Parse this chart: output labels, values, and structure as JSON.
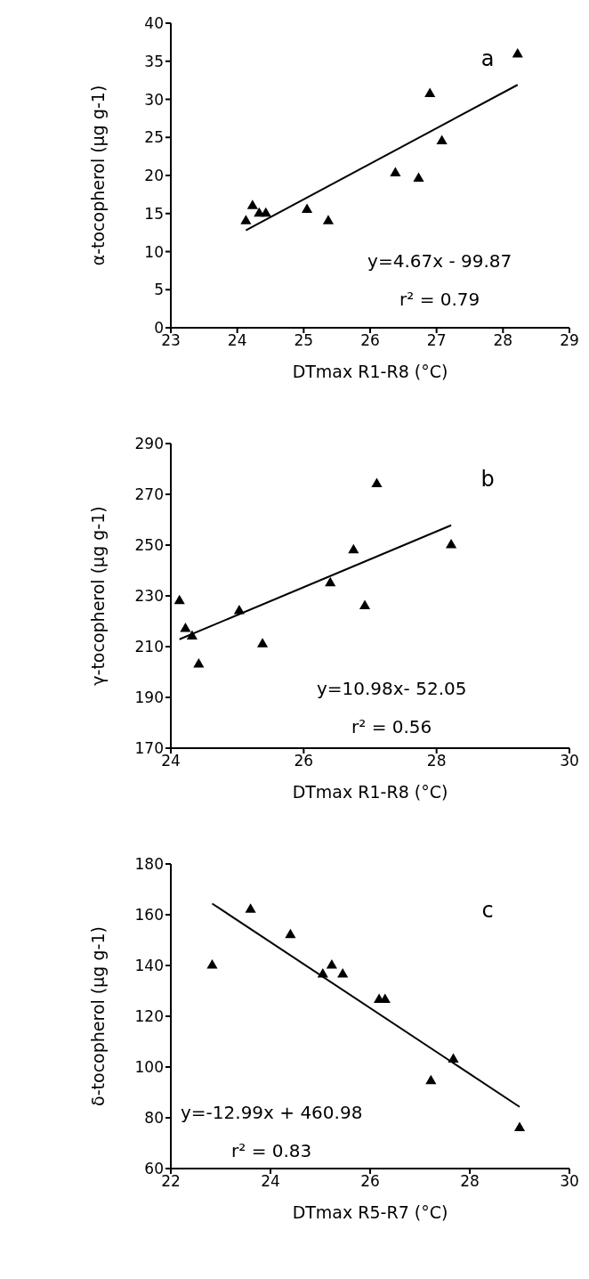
{
  "chart_data": [
    {
      "type": "scatter",
      "xlabel": "DTmax R1-R8 (°C)",
      "ylabel": "α-tocopherol (μg g-1)",
      "xlim": [
        23,
        29
      ],
      "xticks": [
        23,
        24,
        25,
        26,
        27,
        28,
        29
      ],
      "ylim": [
        0,
        40
      ],
      "yticks": [
        0,
        5,
        10,
        15,
        20,
        25,
        30,
        35,
        40
      ],
      "grid": false,
      "annotations": [
        "a",
        "y=4.67x - 99.87",
        "r² = 0.79"
      ],
      "series": [
        {
          "color": "#000000",
          "marker": "triangle",
          "x": [
            24.13,
            24.23,
            24.33,
            24.43,
            25.05,
            25.37,
            26.38,
            26.73,
            26.9,
            27.08,
            28.22
          ],
          "values": [
            14,
            16,
            15,
            15,
            15.5,
            14,
            20.3,
            19.6,
            30.7,
            24.5,
            35.9
          ]
        },
        {
          "type": "line",
          "color": "#000000",
          "marker": "none",
          "x": [
            24.13,
            28.22
          ],
          "values": [
            12.8,
            31.9
          ]
        }
      ]
    },
    {
      "type": "scatter",
      "xlabel": "DTmax R1-R8 (°C)",
      "ylabel": "γ-tocopherol (μg g-1)",
      "xlim": [
        24,
        30
      ],
      "xticks": [
        24,
        26,
        28,
        30
      ],
      "ylim": [
        170,
        290
      ],
      "yticks": [
        170,
        190,
        210,
        230,
        250,
        270,
        290
      ],
      "grid": false,
      "annotations": [
        "b",
        "y=10.98x- 52.05",
        "r² = 0.56"
      ],
      "series": [
        {
          "color": "#000000",
          "marker": "triangle",
          "x": [
            24.13,
            24.22,
            24.32,
            24.42,
            25.03,
            25.38,
            26.4,
            26.75,
            26.92,
            27.1,
            28.22
          ],
          "values": [
            228,
            217,
            214,
            203,
            224,
            211,
            235,
            248,
            226,
            274,
            250
          ]
        },
        {
          "type": "line",
          "color": "#000000",
          "marker": "none",
          "x": [
            24.13,
            28.22
          ],
          "values": [
            212.9,
            257.8
          ]
        }
      ]
    },
    {
      "type": "scatter",
      "xlabel": "DTmax R5-R7 (°C)",
      "ylabel": "δ-tocopherol (μg g-1)",
      "xlim": [
        22,
        30
      ],
      "xticks": [
        22,
        24,
        26,
        28,
        30
      ],
      "ylim": [
        60,
        180
      ],
      "yticks": [
        60,
        80,
        100,
        120,
        140,
        160,
        180
      ],
      "grid": false,
      "annotations": [
        "c",
        "y=-12.99x + 460.98",
        "r² = 0.83"
      ],
      "series": [
        {
          "color": "#000000",
          "marker": "triangle",
          "x": [
            22.83,
            23.6,
            24.4,
            25.05,
            25.23,
            25.45,
            26.18,
            26.3,
            27.22,
            27.67,
            29.0
          ],
          "values": [
            140,
            162,
            152,
            136.5,
            140,
            136.5,
            126.5,
            126.5,
            94.5,
            103,
            76
          ]
        },
        {
          "type": "line",
          "color": "#000000",
          "marker": "none",
          "x": [
            22.83,
            29.0
          ],
          "values": [
            164.4,
            84.3
          ]
        }
      ]
    }
  ]
}
